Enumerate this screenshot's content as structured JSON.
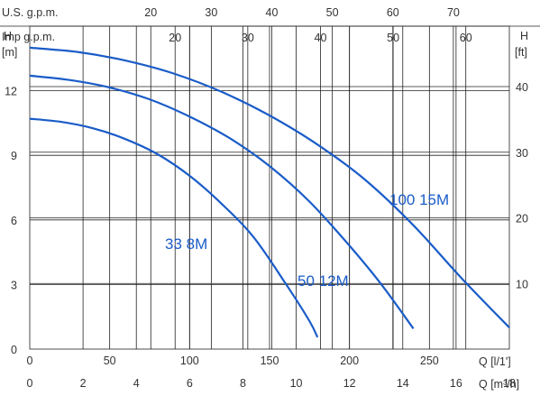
{
  "chart_data": {
    "type": "line",
    "x_unit_label": "Q [l/1']",
    "x_unit2_label": "Q [m³/h]",
    "y_left_label_top": "H",
    "y_left_label_unit": "[m]",
    "y_right_label_top": "H",
    "y_right_label_unit": "[ft]",
    "top_axis1_label": "U.S. g.p.m.",
    "top_axis2_label": "Imp g.p.m.",
    "xlim": [
      0,
      300
    ],
    "ylim": [
      0,
      15
    ],
    "grid": true,
    "x_ticks": [
      0,
      50,
      100,
      150,
      200,
      250
    ],
    "x_ticks_text": [
      "0",
      "50",
      "100",
      "150",
      "200",
      "250"
    ],
    "x2_ticks": [
      0,
      2,
      4,
      6,
      8,
      10,
      12,
      14,
      16,
      18
    ],
    "x2_ticks_text": [
      "0",
      "2",
      "4",
      "6",
      "8",
      "10",
      "12",
      "14",
      "16",
      "18"
    ],
    "y_left_ticks": [
      0,
      3,
      6,
      9,
      12
    ],
    "y_left_ticks_text": [
      "0",
      "3",
      "6",
      "9",
      "12"
    ],
    "y_right_ticks": [
      10,
      20,
      30,
      40
    ],
    "y_right_ticks_text": [
      "10",
      "20",
      "30",
      "40"
    ],
    "us_gpm_ticks": [
      20,
      30,
      40,
      50,
      60,
      70
    ],
    "us_gpm_ticks_text": [
      "20",
      "30",
      "40",
      "50",
      "60",
      "70"
    ],
    "imp_gpm_ticks": [
      20,
      30,
      40,
      50,
      60
    ],
    "imp_gpm_ticks_text": [
      "20",
      "30",
      "40",
      "50",
      "60"
    ],
    "series": [
      {
        "name": "33 8M",
        "color": "#1a5cc8",
        "x": [
          0,
          20,
          40,
          60,
          80,
          100,
          120,
          140,
          160,
          175,
          180
        ],
        "y": [
          10.7,
          10.55,
          10.25,
          9.75,
          9.05,
          8.05,
          6.75,
          5.2,
          3.05,
          1.3,
          0.55
        ]
      },
      {
        "name": "50 12M",
        "color": "#1a5cc8",
        "x": [
          0,
          25,
          50,
          75,
          100,
          125,
          150,
          175,
          200,
          220,
          240
        ],
        "y": [
          12.7,
          12.5,
          12.15,
          11.6,
          10.8,
          9.8,
          8.5,
          6.85,
          4.8,
          3.0,
          0.95
        ]
      },
      {
        "name": "100 15M",
        "color": "#1a5cc8",
        "x": [
          0,
          30,
          60,
          90,
          120,
          150,
          180,
          210,
          240,
          270,
          300
        ],
        "y": [
          14.0,
          13.8,
          13.4,
          12.8,
          11.95,
          10.85,
          9.5,
          7.85,
          5.75,
          3.3,
          1.0
        ]
      }
    ]
  }
}
